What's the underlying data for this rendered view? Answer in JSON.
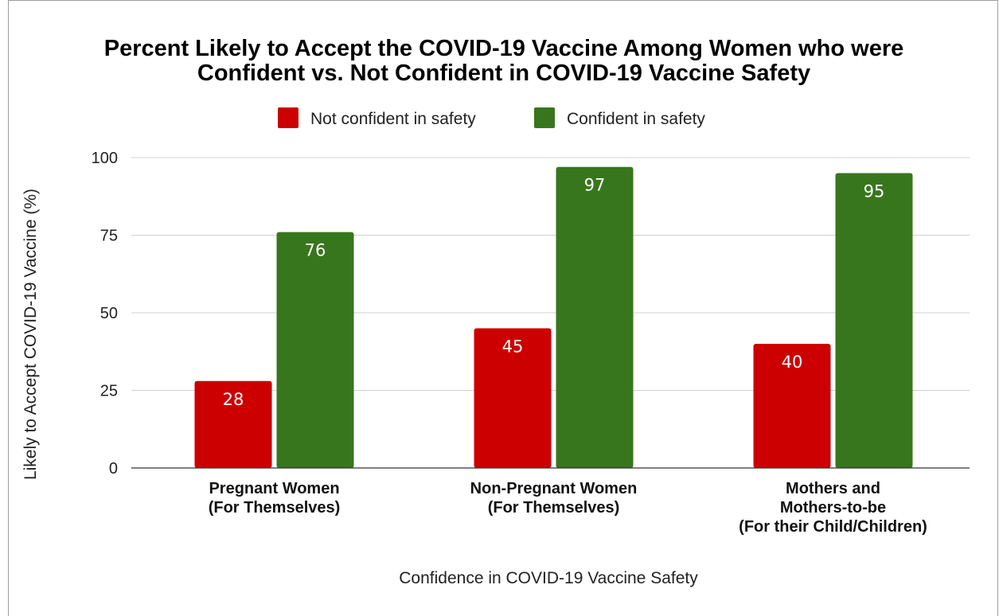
{
  "chart_data": {
    "type": "bar",
    "title": "Percent Likely to Accept the COVID-19 Vaccine Among Women who were Confident vs. Not Confident in COVID-19 Vaccine Safety",
    "title_lines": [
      "Percent Likely to Accept the COVID-19 Vaccine Among Women who were",
      "Confident vs. Not Confident in COVID-19 Vaccine Safety"
    ],
    "xlabel": "Confidence in COVID-19 Vaccine Safety",
    "ylabel": "Likely to Accept COVID-19 Vaccine (%)",
    "ylim": [
      0,
      100
    ],
    "yticks": [
      0,
      25,
      50,
      75,
      100
    ],
    "grid": true,
    "legend_position": "top",
    "categories": [
      [
        "Pregnant Women",
        "(For Themselves)"
      ],
      [
        "Non-Pregnant Women",
        "(For Themselves)"
      ],
      [
        "Mothers and",
        "Mothers-to-be",
        "(For their Child/Children)"
      ]
    ],
    "series": [
      {
        "name": "Not confident in safety",
        "color": "#cc0000",
        "values": [
          28,
          45,
          40
        ]
      },
      {
        "name": "Confident in safety",
        "color": "#38761d",
        "values": [
          76,
          97,
          95
        ]
      }
    ]
  }
}
